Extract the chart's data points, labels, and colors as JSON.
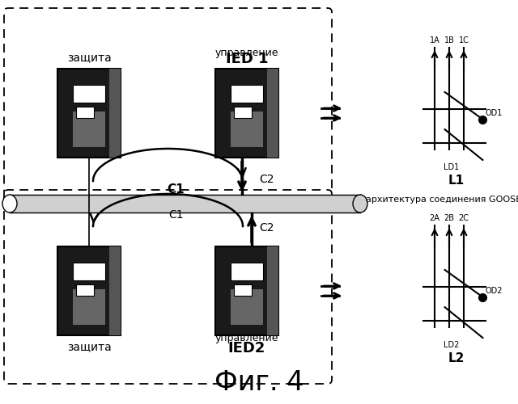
{
  "title": "Фиг. 4",
  "title_fontsize": 24,
  "bg_color": "#ffffff",
  "goose_label": "архитектура соединения GOOSE",
  "ied1_label_top": "управление",
  "ied1_label_bot": "IED 1",
  "ied2_label_top": "управление",
  "ied2_label_bot": "IED2",
  "zashita1_label": "защита",
  "zashita2_label": "защита",
  "L1_label": "L1",
  "L2_label": "L2",
  "OD1_label": "OD1",
  "OD2_label": "OD2",
  "LD1_label": "LD1",
  "LD2_label": "LD2",
  "C1_label": "C1",
  "C2_label": "C2",
  "sw1_labels": [
    "1A",
    "1B",
    "1C"
  ],
  "sw2_labels": [
    "2A",
    "2B",
    "2C"
  ]
}
